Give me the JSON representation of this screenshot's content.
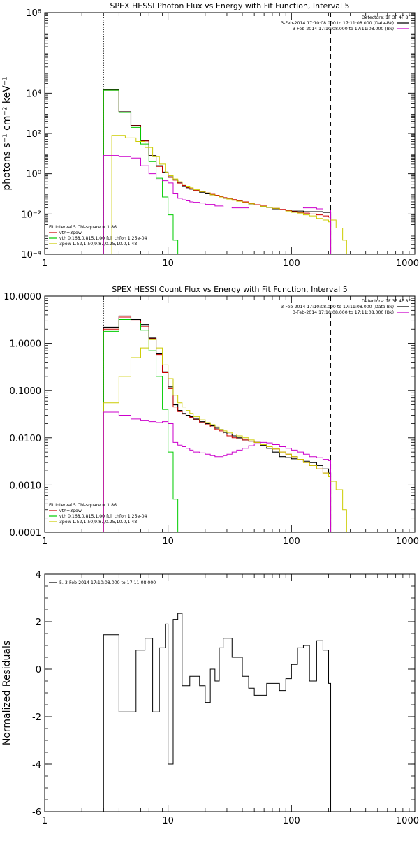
{
  "chart_data": [
    {
      "type": "line",
      "title": "SPEX HESSI Photon Flux vs Energy with Fit Function, Interval 5",
      "xlabel": "",
      "ylabel": "photons s⁻¹ cm⁻² keV⁻¹",
      "xscale": "log",
      "yscale": "log",
      "xlim": [
        1,
        1000
      ],
      "ylim": [
        0.0001,
        100000000
      ],
      "x_ticks": [
        1,
        10,
        100,
        1000
      ],
      "x_tick_labels": [
        "1",
        "10",
        "100",
        "1000"
      ],
      "y_ticks": [
        0.0001,
        0.01,
        1,
        100,
        10000,
        100000000
      ],
      "y_tick_labels": [
        "10⁻⁴",
        "10⁻²",
        "10⁰",
        "10²",
        "10⁴",
        "10⁸"
      ],
      "vlines": [
        {
          "x": 3,
          "style": "dotted",
          "color": "#000000"
        },
        {
          "x": 208,
          "style": "dashed",
          "color": "#000000"
        }
      ],
      "legend_top_right": [
        {
          "text": "Detectors: 1F 3F 4F 8F",
          "color": "#000000",
          "swatch": false
        },
        {
          "text": "3-Feb-2014 17:10:08.000 to 17:11:08.000 (Data-Bk)",
          "color": "#000000",
          "swatch": true
        },
        {
          "text": "3-Feb-2014 17:10:08.000 to 17:11:08.000 (Bk)",
          "color": "#cc00cc",
          "swatch": true
        }
      ],
      "legend_bottom_left": [
        {
          "text": "Fit Interval 5   Chi-square = 1.86",
          "color": "#000000",
          "swatch": false
        },
        {
          "text": "vth+3pow",
          "color": "#cc0000",
          "swatch": true
        },
        {
          "text": "vth 0.168,0.815,1.00  full chfon 1.25e-04",
          "color": "#00cc00",
          "swatch": true
        },
        {
          "text": "3pow 1.52,1.50,9.87,0.25,10.0,1.48",
          "color": "#cccc00",
          "swatch": true
        }
      ],
      "energy_edges": [
        3,
        3.5,
        4,
        4.5,
        5,
        5.5,
        6,
        6.5,
        7,
        7.5,
        8,
        8.5,
        9,
        9.5,
        10,
        11,
        12,
        13,
        14,
        15,
        16,
        18,
        20,
        22,
        24,
        26,
        28,
        30,
        33,
        36,
        40,
        45,
        50,
        56,
        63,
        70,
        80,
        90,
        100,
        112,
        125,
        140,
        160,
        180,
        200,
        208
      ],
      "series": [
        {
          "name": "3-Feb-2014 17:10:08.000 to 17:11:08.000 (Data-Bk)",
          "color": "#000000",
          "width": 1.1,
          "values": [
            15000,
            15000,
            1200,
            1200,
            250,
            250,
            45,
            45,
            8,
            8,
            2.5,
            2.5,
            1.2,
            1.2,
            0.7,
            0.5,
            0.35,
            0.25,
            0.2,
            0.17,
            0.14,
            0.12,
            0.1,
            0.09,
            0.08,
            0.07,
            0.06,
            0.055,
            0.05,
            0.045,
            0.038,
            0.032,
            0.028,
            0.024,
            0.021,
            0.018,
            0.016,
            0.015,
            0.014,
            0.014,
            0.013,
            0.013,
            0.013,
            0.012,
            0.012
          ]
        },
        {
          "name": "vth+3pow",
          "color": "#cc0000",
          "width": 1,
          "values": [
            14000,
            14000,
            1150,
            1150,
            240,
            240,
            42,
            42,
            7.5,
            7.5,
            2.3,
            2.3,
            1.1,
            1.1,
            0.65,
            0.48,
            0.34,
            0.26,
            0.21,
            0.18,
            0.15,
            0.13,
            0.11,
            0.095,
            0.085,
            0.075,
            0.065,
            0.06,
            0.052,
            0.046,
            0.04,
            0.034,
            0.029,
            0.025,
            0.022,
            0.019,
            0.017,
            0.015,
            0.013,
            0.012,
            0.011,
            0.01,
            0.009,
            0.008,
            0.007
          ]
        },
        {
          "name": "vth 0.168,0.815,1.00  full chfon 1.25e-04",
          "color": "#00cc00",
          "width": 1,
          "values": [
            14000,
            14000,
            1100,
            1100,
            200,
            200,
            30,
            30,
            4,
            4,
            0.6,
            0.6,
            0.07,
            0.07,
            0.009,
            0.0005,
            2e-05
          ]
        },
        {
          "name": "3pow 1.52,1.50,9.87,0.25,10.0,1.48",
          "color": "#cccc00",
          "width": 1,
          "values": [
            0.0001,
            80,
            80,
            60,
            60,
            40,
            40,
            20,
            20,
            7,
            7,
            3,
            3,
            1.2,
            0.8,
            0.55,
            0.4,
            0.3,
            0.24,
            0.2,
            0.16,
            0.13,
            0.11,
            0.09,
            0.08,
            0.07,
            0.06,
            0.055,
            0.048,
            0.043,
            0.037,
            0.032,
            0.028,
            0.024,
            0.021,
            0.019,
            0.016,
            0.014,
            0.012,
            0.011,
            0.009,
            0.008,
            0.006,
            0.005,
            0.004
          ]
        },
        {
          "name": "3-Feb-2014 17:10:08.000 to 17:11:08.000 (Bk)",
          "color": "#cc00cc",
          "width": 1,
          "values": [
            8,
            8,
            7,
            7,
            6,
            6,
            2.5,
            2.5,
            1,
            1,
            0.5,
            0.5,
            0.45,
            0.45,
            0.35,
            0.1,
            0.06,
            0.05,
            0.045,
            0.04,
            0.038,
            0.035,
            0.03,
            0.03,
            0.025,
            0.025,
            0.022,
            0.022,
            0.02,
            0.02,
            0.02,
            0.022,
            0.022,
            0.022,
            0.022,
            0.022,
            0.022,
            0.022,
            0.022,
            0.022,
            0.02,
            0.02,
            0.018,
            0.016,
            0.016
          ]
        }
      ],
      "extra_steps": [
        {
          "color": "#cccc00",
          "x": [
            208,
            230,
            230,
            260,
            260,
            280
          ],
          "y": [
            0.005,
            0.005,
            0.002,
            0.002,
            0.0005,
            0.0005
          ],
          "drop_to_axis": true
        }
      ]
    },
    {
      "type": "line",
      "title": "SPEX HESSI Count Flux vs Energy with Fit Function, Interval 5",
      "xlabel": "",
      "ylabel": "",
      "xscale": "log",
      "yscale": "log",
      "xlim": [
        1,
        1000
      ],
      "ylim": [
        0.0001,
        10
      ],
      "x_ticks": [
        1,
        10,
        100,
        1000
      ],
      "x_tick_labels": [
        "1",
        "10",
        "100",
        "1000"
      ],
      "y_ticks": [
        0.0001,
        0.001,
        0.01,
        0.1,
        1,
        10
      ],
      "y_tick_labels": [
        "0.0001",
        "0.0010",
        "0.0100",
        "0.1000",
        "1.0000",
        "10.0000"
      ],
      "vlines": [
        {
          "x": 3,
          "style": "dotted",
          "color": "#000000"
        },
        {
          "x": 208,
          "style": "dashed",
          "color": "#000000"
        }
      ],
      "legend_top_right": [
        {
          "text": "Detectors: 1F 3F 4F 8F",
          "color": "#000000",
          "swatch": false
        },
        {
          "text": "3-Feb-2014 17:10:08.000 to 17:11:08.000 (Data-Bk)",
          "color": "#000000",
          "swatch": true
        },
        {
          "text": "3-Feb-2014 17:10:08.000 to 17:11:08.000 (Bk)",
          "color": "#cc00cc",
          "swatch": true
        }
      ],
      "legend_bottom_left": [
        {
          "text": "Fit Interval 5   Chi-square = 1.86",
          "color": "#000000",
          "swatch": false
        },
        {
          "text": "vth+3pow",
          "color": "#cc0000",
          "swatch": true
        },
        {
          "text": "vth 0.168,0.815,1.00  full chfon 1.25e-04",
          "color": "#00cc00",
          "swatch": true
        },
        {
          "text": "3pow 1.52,1.50,9.87,0.25,10.0,1.48",
          "color": "#cccc00",
          "swatch": true
        }
      ],
      "energy_edges": [
        3,
        3.5,
        4,
        4.5,
        5,
        5.5,
        6,
        6.5,
        7,
        7.5,
        8,
        8.5,
        9,
        9.5,
        10,
        11,
        12,
        13,
        14,
        15,
        16,
        18,
        20,
        22,
        24,
        26,
        28,
        30,
        33,
        36,
        40,
        45,
        50,
        56,
        63,
        70,
        80,
        90,
        100,
        112,
        125,
        140,
        160,
        180,
        200,
        208
      ],
      "series": [
        {
          "name": "3-Feb-2014 17:10:08.000 to 17:11:08.000 (Data-Bk)",
          "color": "#000000",
          "width": 1.1,
          "values": [
            2.2,
            2.2,
            3.8,
            3.8,
            3.2,
            3.2,
            2.5,
            2.5,
            1.3,
            1.3,
            0.6,
            0.6,
            0.25,
            0.25,
            0.12,
            0.05,
            0.038,
            0.033,
            0.03,
            0.028,
            0.025,
            0.022,
            0.02,
            0.018,
            0.016,
            0.015,
            0.013,
            0.012,
            0.011,
            0.01,
            0.009,
            0.0085,
            0.008,
            0.007,
            0.006,
            0.005,
            0.004,
            0.0038,
            0.0036,
            0.0034,
            0.0032,
            0.003,
            0.0026,
            0.0022,
            0.0018
          ]
        },
        {
          "name": "vth+3pow",
          "color": "#cc0000",
          "width": 1,
          "values": [
            2.0,
            2.0,
            3.6,
            3.6,
            3.0,
            3.0,
            2.3,
            2.3,
            1.25,
            1.25,
            0.58,
            0.58,
            0.24,
            0.24,
            0.11,
            0.045,
            0.036,
            0.032,
            0.029,
            0.027,
            0.024,
            0.021,
            0.019,
            0.017,
            0.015,
            0.014,
            0.012,
            0.011,
            0.01,
            0.0095,
            0.009,
            0.0085,
            0.008,
            0.0072,
            0.0065,
            0.0058,
            0.005,
            0.0045,
            0.004,
            0.0035,
            0.003,
            0.0026,
            0.0022,
            0.0018,
            0.0015
          ]
        },
        {
          "name": "vth 0.168,0.815,1.00  full chfon 1.25e-04",
          "color": "#00cc00",
          "width": 1,
          "values": [
            1.8,
            1.8,
            3.2,
            3.2,
            2.7,
            2.7,
            1.9,
            1.9,
            0.7,
            0.7,
            0.2,
            0.2,
            0.04,
            0.04,
            0.005,
            0.0005,
            4e-05
          ]
        },
        {
          "name": "3pow 1.52,1.50,9.87,0.25,10.0,1.48",
          "color": "#cccc00",
          "width": 1,
          "values": [
            0.055,
            0.055,
            0.2,
            0.2,
            0.5,
            0.5,
            0.8,
            0.8,
            1.2,
            1.2,
            0.8,
            0.8,
            0.35,
            0.35,
            0.18,
            0.08,
            0.055,
            0.045,
            0.038,
            0.033,
            0.028,
            0.024,
            0.021,
            0.019,
            0.017,
            0.015,
            0.014,
            0.013,
            0.012,
            0.011,
            0.01,
            0.009,
            0.008,
            0.0072,
            0.0065,
            0.0058,
            0.005,
            0.0045,
            0.004,
            0.0035,
            0.003,
            0.0026,
            0.0022,
            0.0018,
            0.0015
          ]
        },
        {
          "name": "3-Feb-2014 17:10:08.000 to 17:11:08.000 (Bk)",
          "color": "#cc00cc",
          "width": 1,
          "values": [
            0.035,
            0.035,
            0.03,
            0.03,
            0.025,
            0.025,
            0.023,
            0.023,
            0.022,
            0.022,
            0.021,
            0.021,
            0.022,
            0.022,
            0.02,
            0.008,
            0.007,
            0.0065,
            0.006,
            0.0055,
            0.005,
            0.0048,
            0.0045,
            0.0042,
            0.004,
            0.004,
            0.0042,
            0.0045,
            0.005,
            0.0055,
            0.006,
            0.0068,
            0.0075,
            0.008,
            0.0078,
            0.0072,
            0.0065,
            0.006,
            0.0055,
            0.005,
            0.0045,
            0.004,
            0.0038,
            0.0035,
            0.0033
          ]
        }
      ],
      "extra_steps": [
        {
          "color": "#cccc00",
          "x": [
            208,
            230,
            230,
            260,
            260,
            280
          ],
          "y": [
            0.0012,
            0.0012,
            0.0008,
            0.0008,
            0.0003,
            0.0003
          ],
          "drop_to_axis": true
        }
      ]
    },
    {
      "type": "line",
      "title": "",
      "xlabel": "",
      "ylabel": "Normalized Residuals",
      "xscale": "log",
      "yscale": "linear",
      "xlim": [
        1,
        1000
      ],
      "ylim": [
        -6,
        4
      ],
      "x_ticks": [
        1,
        10,
        100,
        1000
      ],
      "x_tick_labels": [
        "1",
        "10",
        "100",
        "1000"
      ],
      "y_ticks": [
        -6,
        -4,
        -2,
        0,
        2,
        4
      ],
      "y_tick_labels": [
        "-6",
        "-4",
        "-2",
        "0",
        "2",
        "4"
      ],
      "legend_top_left": [
        {
          "text": "5.  3-Feb-2014 17:10:08.000 to 17:11:08.000",
          "color": "#000000",
          "swatch": true
        }
      ],
      "energy_edges": [
        3,
        3.5,
        4,
        4.5,
        5,
        5.5,
        6,
        6.5,
        7,
        7.5,
        8,
        8.5,
        9,
        9.5,
        10,
        11,
        12,
        13,
        14,
        15,
        16,
        18,
        20,
        22,
        24,
        26,
        28,
        30,
        33,
        36,
        40,
        45,
        50,
        56,
        63,
        70,
        80,
        90,
        100,
        112,
        125,
        140,
        160,
        180,
        200,
        208
      ],
      "series": [
        {
          "name": "5.  3-Feb-2014 17:10:08.000 to 17:11:08.000",
          "color": "#000000",
          "width": 1,
          "drop_to_axis": true,
          "values": [
            1.45,
            1.45,
            -1.8,
            -1.8,
            -1.8,
            0.8,
            0.8,
            1.3,
            1.3,
            -1.8,
            -1.8,
            0.9,
            0.9,
            1.9,
            -4.0,
            2.1,
            2.35,
            -0.7,
            -0.7,
            -0.3,
            -0.3,
            -0.7,
            -1.4,
            0.0,
            -0.5,
            0.9,
            1.3,
            1.3,
            0.5,
            0.5,
            -0.3,
            -0.8,
            -1.1,
            -1.1,
            -0.6,
            -0.6,
            -0.9,
            -0.4,
            0.2,
            0.9,
            1.0,
            -0.5,
            1.2,
            0.8,
            -0.6
          ]
        }
      ]
    }
  ]
}
